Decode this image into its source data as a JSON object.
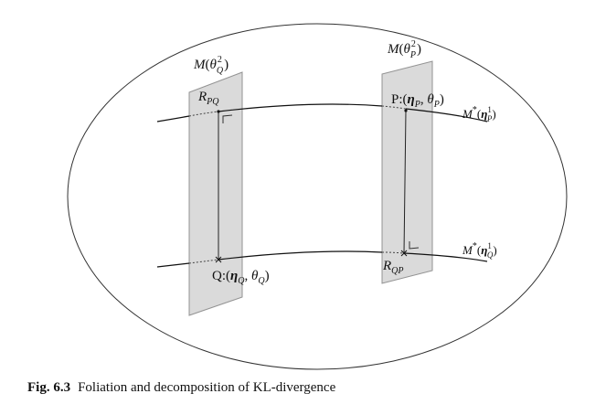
{
  "diagram": {
    "nodes": [
      {
        "id": "leaf-q",
        "kind": "leaf",
        "label": {
          "base": "M",
          "arg": "θ",
          "sup": "2",
          "sub": "Q"
        }
      },
      {
        "id": "leaf-p",
        "kind": "leaf",
        "label": {
          "base": "M",
          "arg": "θ",
          "sup": "2",
          "sub": "P"
        }
      },
      {
        "id": "point-rpq",
        "kind": "point",
        "label": {
          "base": "R",
          "sub": "PQ"
        }
      },
      {
        "id": "point-p",
        "kind": "point",
        "label": {
          "base": "P",
          "coords": "(η_P, θ_P)"
        }
      },
      {
        "id": "point-q",
        "kind": "point",
        "label": {
          "base": "Q",
          "coords": "(η_Q, θ_Q)"
        }
      },
      {
        "id": "point-rqp",
        "kind": "point",
        "label": {
          "base": "R",
          "sub": "QP"
        }
      },
      {
        "id": "curve-p",
        "kind": "curve",
        "label": {
          "base": "M",
          "star": "*",
          "arg": "η",
          "sup": "1",
          "sub": "P"
        }
      },
      {
        "id": "curve-q",
        "kind": "curve",
        "label": {
          "base": "M",
          "star": "*",
          "arg": "η",
          "sup": "1",
          "sub": "Q"
        }
      }
    ],
    "edges": [
      {
        "from": "point-rpq",
        "to": "point-q",
        "kind": "segment",
        "right_angle": true
      },
      {
        "from": "point-p",
        "to": "point-rqp",
        "kind": "segment",
        "right_angle": true
      }
    ]
  },
  "caption": {
    "figure": "Fig. 6.3",
    "text": "Foliation and decomposition of KL-divergence"
  }
}
